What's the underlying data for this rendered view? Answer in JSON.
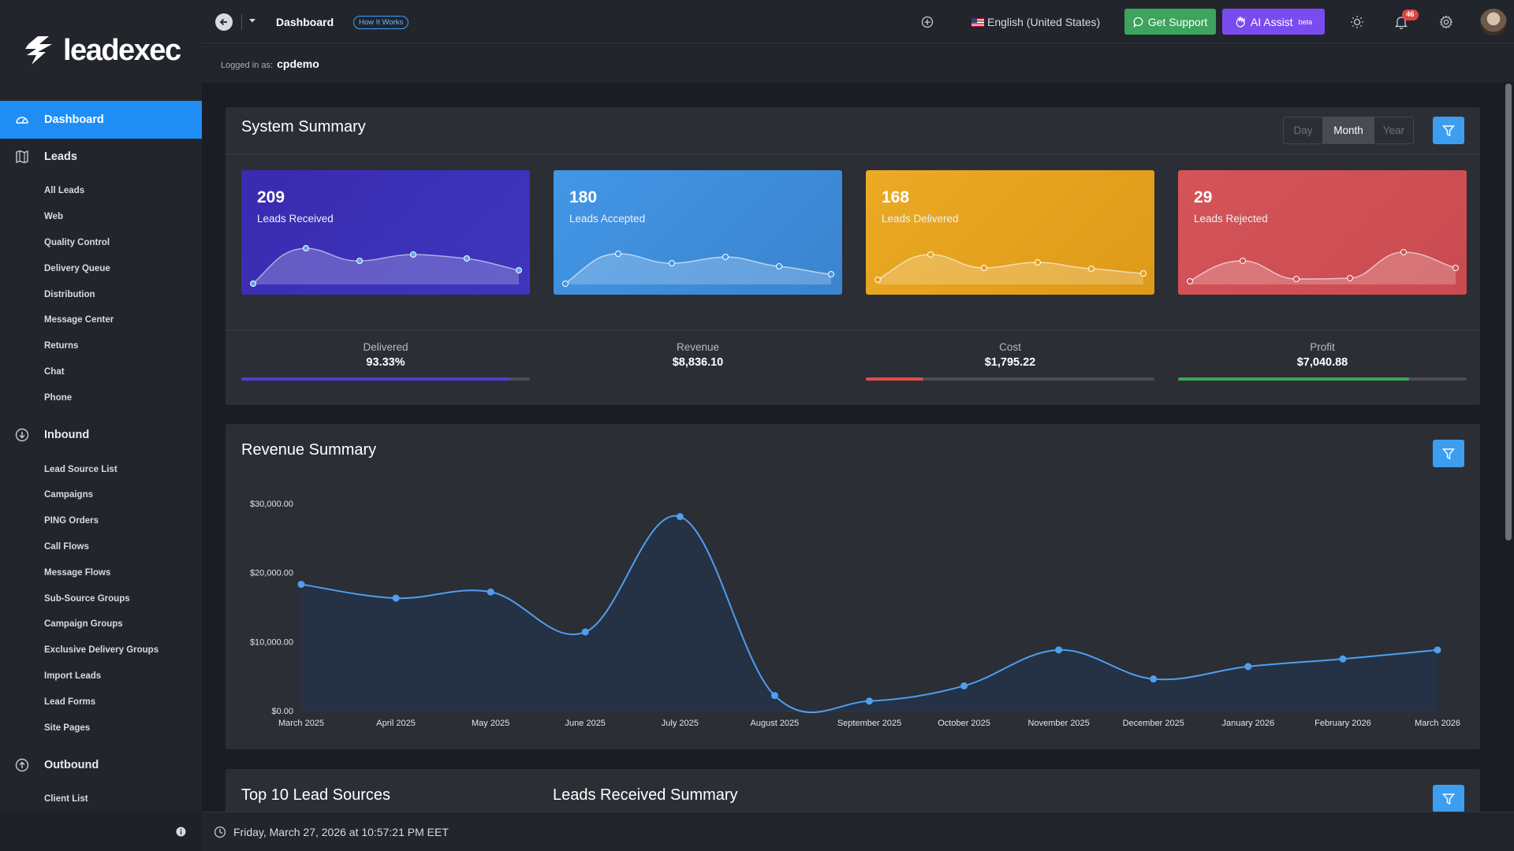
{
  "brand": {
    "name": "leadexec"
  },
  "topbar": {
    "title": "Dashboard",
    "how_it_works": "How It Works",
    "language": "English (United States)",
    "support_label": "Get Support",
    "ai_label": "AI Assist",
    "ai_badge": "beta",
    "notifications": "46"
  },
  "session": {
    "logged_prefix": "Logged in as:",
    "user": "cpdemo"
  },
  "sidebar": {
    "dashboard": "Dashboard",
    "leads": {
      "label": "Leads",
      "items": [
        "All Leads",
        "Web",
        "Quality Control",
        "Delivery Queue",
        "Distribution",
        "Message Center",
        "Returns",
        "Chat",
        "Phone"
      ]
    },
    "inbound": {
      "label": "Inbound",
      "items": [
        "Lead Source List",
        "Campaigns",
        "PING Orders",
        "Call Flows",
        "Message Flows",
        "Sub-Source Groups",
        "Campaign Groups",
        "Exclusive Delivery Groups",
        "Import Leads",
        "Lead Forms",
        "Site Pages"
      ]
    },
    "outbound": {
      "label": "Outbound",
      "items": [
        "Client List"
      ]
    }
  },
  "system_summary": {
    "title": "System Summary",
    "periods": [
      "Day",
      "Month",
      "Year"
    ],
    "selected_period": "Month",
    "cards": [
      {
        "value": "209",
        "label": "Leads Received",
        "color": "#3a2fb2"
      },
      {
        "value": "180",
        "label": "Leads Accepted",
        "color": "#3f95e4"
      },
      {
        "value": "168",
        "label": "Leads Delivered",
        "color": "#e6a21f"
      },
      {
        "value": "29",
        "label": "Leads Rejected",
        "color": "#cf5155"
      }
    ],
    "metrics": [
      {
        "label": "Delivered",
        "value": "93.33%",
        "progress": 0.93,
        "color": "#4a3fd0"
      },
      {
        "label": "Revenue",
        "value": "$8,836.10"
      },
      {
        "label": "Cost",
        "value": "$1,795.22",
        "progress": 0.2,
        "color": "#e04c4c"
      },
      {
        "label": "Profit",
        "value": "$7,040.88",
        "progress": 0.8,
        "color": "#3aa553"
      }
    ]
  },
  "revenue_summary": {
    "title": "Revenue Summary",
    "chart_data": {
      "type": "area",
      "categories": [
        "March 2025",
        "April 2025",
        "May 2025",
        "June 2025",
        "July 2025",
        "August 2025",
        "September 2025",
        "October 2025",
        "November 2025",
        "December 2025",
        "January 2026",
        "February 2026",
        "March 2026"
      ],
      "values": [
        18300,
        16300,
        17200,
        11400,
        28100,
        2200,
        1400,
        3600,
        8800,
        4600,
        6400,
        7500,
        8800
      ],
      "yticks": [
        "$30,000.00",
        "$20,000.00",
        "$10,000.00",
        "$0.00"
      ],
      "ylim": [
        0,
        30000
      ],
      "line_color": "#4d9ff0"
    }
  },
  "bottom": {
    "left_title": "Top 10 Lead Sources",
    "right_title": "Leads Received Summary"
  },
  "status": {
    "datetime": "Friday, March 27, 2026 at 10:57:21 PM EET"
  }
}
